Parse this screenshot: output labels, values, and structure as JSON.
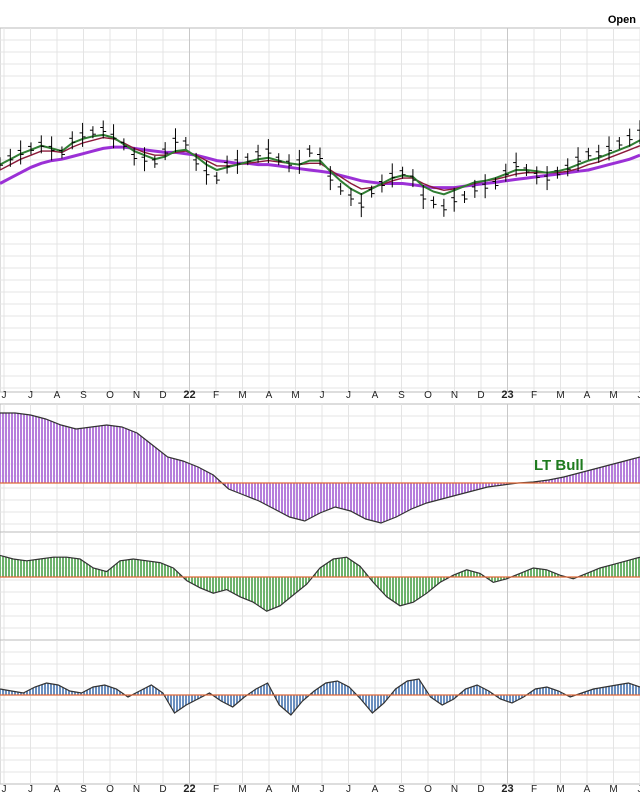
{
  "header": {
    "open_label": "Open"
  },
  "annotation": {
    "lt_bull": "LT Bull"
  },
  "chart_data": [
    {
      "type": "line",
      "panel": "price",
      "months": [
        "J",
        "J",
        "A",
        "S",
        "O",
        "N",
        "D",
        "22",
        "F",
        "M",
        "A",
        "M",
        "J",
        "J",
        "A",
        "S",
        "O",
        "N",
        "D",
        "23",
        "F",
        "M",
        "A",
        "M",
        "J"
      ],
      "series": [
        {
          "style": "ohlc_bars",
          "color": "#000000",
          "values": [
            5,
            9,
            13,
            16,
            19,
            16,
            13,
            22,
            26,
            28,
            30,
            25,
            19,
            10,
            8,
            6,
            14,
            22,
            20,
            6,
            -2,
            -6,
            4,
            6,
            8,
            12,
            14,
            8,
            5,
            6,
            14,
            10,
            -6,
            -14,
            -20,
            -26,
            -16,
            -10,
            -4,
            -2,
            -6,
            -20,
            -24,
            -28,
            -22,
            -20,
            -14,
            -12,
            -10,
            -2,
            4,
            0,
            -4,
            -6,
            -2,
            2,
            8,
            12,
            12,
            16,
            20,
            24,
            28
          ]
        },
        {
          "color": "#2f7d32",
          "values": [
            4,
            8,
            12,
            15,
            18,
            16,
            14,
            20,
            23,
            25,
            26,
            24,
            19,
            14,
            11,
            8,
            10,
            14,
            15,
            10,
            4,
            0,
            2,
            4,
            6,
            8,
            9,
            7,
            5,
            4,
            7,
            7,
            -1,
            -8,
            -14,
            -18,
            -14,
            -10,
            -6,
            -4,
            -5,
            -12,
            -16,
            -18,
            -15,
            -12,
            -9,
            -8,
            -6,
            -3,
            0,
            0,
            -1,
            -2,
            -1,
            1,
            4,
            7,
            9,
            12,
            15,
            18,
            22
          ]
        },
        {
          "color": "#8b1a3a",
          "values": [
            0,
            4,
            8,
            11,
            14,
            14,
            13,
            17,
            20,
            22,
            24,
            23,
            20,
            16,
            13,
            11,
            11,
            13,
            14,
            11,
            7,
            3,
            3,
            4,
            5,
            6,
            7,
            6,
            5,
            4,
            5,
            5,
            0,
            -5,
            -10,
            -14,
            -13,
            -11,
            -8,
            -6,
            -6,
            -10,
            -13,
            -15,
            -14,
            -12,
            -10,
            -8,
            -7,
            -5,
            -3,
            -2,
            -2,
            -2,
            -2,
            -1,
            1,
            4,
            6,
            9,
            12,
            15,
            18
          ]
        },
        {
          "color": "#9b30d6",
          "values": [
            -10,
            -6,
            -2,
            2,
            5,
            7,
            8,
            10,
            12,
            14,
            16,
            17,
            17,
            16,
            15,
            14,
            13,
            13,
            12,
            11,
            9,
            7,
            6,
            5,
            5,
            4,
            4,
            3,
            2,
            1,
            0,
            -1,
            -2,
            -4,
            -6,
            -8,
            -9,
            -10,
            -10,
            -10,
            -11,
            -12,
            -13,
            -13,
            -13,
            -12,
            -11,
            -10,
            -9,
            -8,
            -7,
            -6,
            -5,
            -4,
            -3,
            -2,
            -1,
            0,
            2,
            4,
            6,
            8,
            11
          ]
        }
      ]
    },
    {
      "type": "area",
      "panel": "indicator_1",
      "color": "#b57edc",
      "values": [
        70,
        70,
        68,
        64,
        58,
        54,
        56,
        58,
        56,
        50,
        38,
        26,
        22,
        16,
        8,
        -6,
        -12,
        -18,
        -26,
        -34,
        -38,
        -30,
        -24,
        -28,
        -36,
        -40,
        -34,
        -26,
        -20,
        -16,
        -12,
        -8,
        -4,
        -2,
        0,
        1,
        3,
        6,
        10,
        14,
        18,
        22,
        26
      ]
    },
    {
      "type": "area",
      "panel": "indicator_2",
      "color": "#6db36d",
      "values": [
        24,
        20,
        18,
        20,
        22,
        22,
        20,
        10,
        6,
        18,
        20,
        18,
        16,
        10,
        -4,
        -12,
        -18,
        -14,
        -22,
        -28,
        -38,
        -32,
        -20,
        -8,
        10,
        20,
        22,
        12,
        -6,
        -22,
        -32,
        -28,
        -18,
        -6,
        2,
        8,
        4,
        -6,
        -2,
        4,
        10,
        8,
        2,
        -2,
        4,
        10,
        14,
        18,
        22
      ]
    },
    {
      "type": "area",
      "panel": "indicator_3",
      "color": "#6b8fbf",
      "values": [
        6,
        4,
        2,
        8,
        12,
        10,
        4,
        2,
        8,
        10,
        6,
        -2,
        4,
        10,
        2,
        -18,
        -10,
        -4,
        2,
        -6,
        -12,
        -2,
        6,
        12,
        -10,
        -20,
        -6,
        4,
        12,
        14,
        8,
        -4,
        -18,
        -8,
        6,
        14,
        16,
        -2,
        -10,
        -4,
        6,
        10,
        4,
        -4,
        -8,
        -2,
        6,
        8,
        4,
        -2,
        2,
        6,
        8,
        10,
        12,
        8
      ]
    }
  ]
}
